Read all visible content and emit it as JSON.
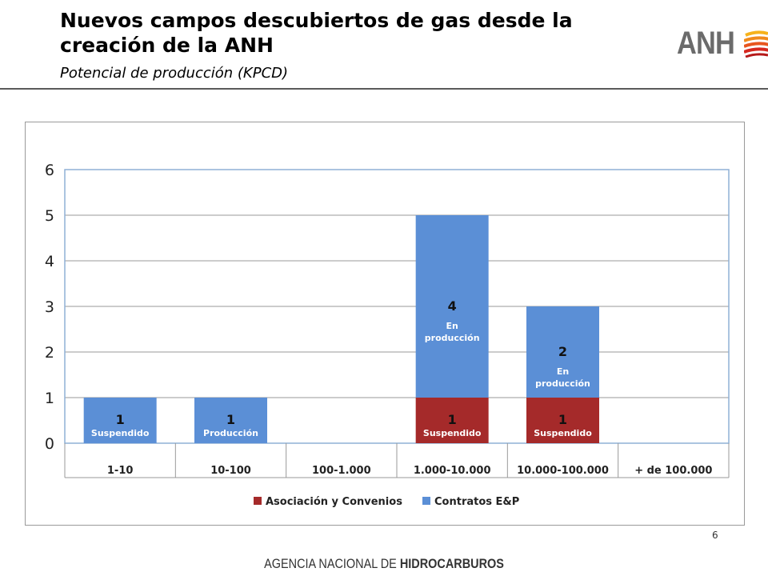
{
  "header": {
    "title": "Nuevos campos descubiertos de gas desde la creación de la ANH",
    "subtitle": "Potencial de producción (KPCD)",
    "logo_text": "ANH"
  },
  "footer": {
    "text_regular": "AGENCIA NACIONAL DE ",
    "text_bold": "HIDROCARBUROS",
    "page_number": "6"
  },
  "colors": {
    "asociacion": "#a52a2a",
    "contratos": "#5b8fd6",
    "gridline": "#9a9a9a",
    "plot_border": "#8fb0d6"
  },
  "chart_data": {
    "type": "bar",
    "stacked": true,
    "categories": [
      "1-10",
      "10-100",
      "100-1.000",
      "1.000-10.000",
      "10.000-100.000",
      "+ de 100.000"
    ],
    "series": [
      {
        "name": "Asociación y Convenios",
        "values": [
          0,
          0,
          0,
          1,
          1,
          0
        ],
        "labels": [
          "",
          "",
          "",
          "1",
          "1",
          ""
        ],
        "notes": [
          "",
          "",
          "",
          "Suspendido",
          "Suspendido",
          ""
        ]
      },
      {
        "name": "Contratos E&P",
        "values": [
          1,
          1,
          0,
          4,
          2,
          0
        ],
        "labels": [
          "1",
          "1",
          "",
          "4",
          "2",
          ""
        ],
        "notes": [
          "Suspendido",
          "Producción",
          "",
          "En producción",
          "En producción",
          ""
        ]
      }
    ],
    "yticks": [
      0,
      1,
      2,
      3,
      4,
      5,
      6
    ],
    "ylim": [
      0,
      6
    ],
    "grid": true,
    "legend": "bottom"
  }
}
